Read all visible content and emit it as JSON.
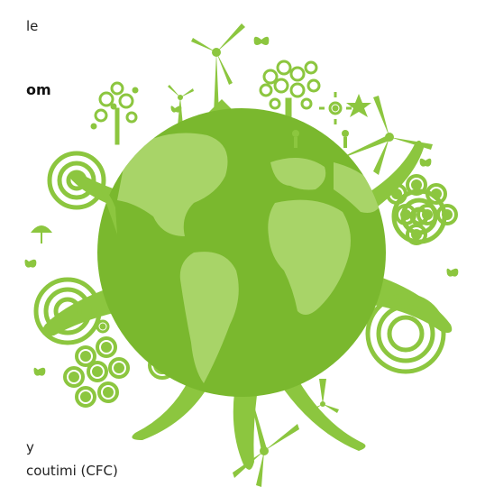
{
  "text": {
    "line1": "le",
    "line2": "om",
    "line3": "y",
    "line4": "coutimi (CFC)"
  },
  "colors": {
    "primary_green": "#8cc63f",
    "light_green": "#a8d468",
    "dark_green": "#7ab82e",
    "text": "#222222"
  },
  "icons": [
    "globe-icon",
    "wind-turbine-icon",
    "house-icon",
    "tree-icon",
    "butterfly-icon",
    "bird-icon",
    "flower-icon",
    "person-icon"
  ]
}
